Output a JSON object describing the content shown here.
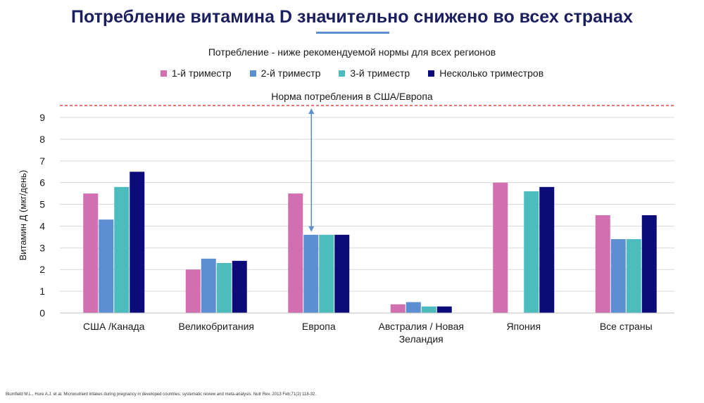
{
  "title": "Потребление витамина D значительно снижено во всех странах",
  "chart_data": {
    "type": "bar",
    "subtitle": "Потребление  - ниже рекомендуемой  нормы для  всех регионов",
    "ylabel": "Витамин Д (мкг/день)",
    "xlabel": "",
    "ylim": [
      0,
      9
    ],
    "yticks": [
      "0",
      "1",
      "2",
      "3",
      "4",
      "5",
      "6",
      "7",
      "8",
      "9"
    ],
    "grid": true,
    "legend_position": "top",
    "categories": [
      [
        "США /Канада"
      ],
      [
        "Великобритания"
      ],
      [
        "Европа"
      ],
      [
        "Австралия  / Новая",
        "Зеландия"
      ],
      [
        "Япония"
      ],
      [
        "Все страны"
      ]
    ],
    "series": [
      {
        "name": "1-й триместр",
        "color": "#d16fb0",
        "values": [
          5.5,
          2.0,
          5.5,
          0.4,
          6.0,
          4.5
        ]
      },
      {
        "name": "2-й триместр",
        "color": "#5b8fd1",
        "values": [
          4.3,
          2.5,
          3.6,
          0.5,
          null,
          3.4
        ]
      },
      {
        "name": "3-й триместр",
        "color": "#4cbcbc",
        "values": [
          5.8,
          2.3,
          3.6,
          0.3,
          5.6,
          3.4
        ]
      },
      {
        "name": "Несколько триместров",
        "color": "#0b0b7a",
        "values": [
          6.5,
          2.4,
          3.6,
          0.3,
          5.8,
          4.5
        ]
      }
    ],
    "reference_line": {
      "label": "Норма потребления  в США/Европа",
      "value": 9.55,
      "color": "#e02020"
    },
    "arrow": {
      "category_index": 2,
      "from": 9.55,
      "to": 3.6,
      "color": "#5b8fd1"
    }
  },
  "footnote": "Blumfield M.L., Hure A.J. et al. Micronutrient intakes during pregnancy in developed countries: systematic review and meta-analysis. Nutr Rev. 2013 Feb;71(2):118-32."
}
